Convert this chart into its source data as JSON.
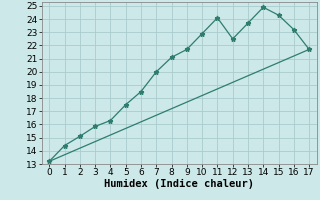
{
  "xlabel": "Humidex (Indice chaleur)",
  "line1_x": [
    0,
    1,
    2,
    3,
    4,
    5,
    6,
    7,
    8,
    9,
    10,
    11,
    12,
    13,
    14,
    15,
    16,
    17
  ],
  "line1_y": [
    13.2,
    14.4,
    15.1,
    15.85,
    16.3,
    17.5,
    18.5,
    20.0,
    21.1,
    21.7,
    22.9,
    24.1,
    22.5,
    23.7,
    24.9,
    24.3,
    23.2,
    21.7
  ],
  "line2_x": [
    0,
    17
  ],
  "line2_y": [
    13.2,
    21.7
  ],
  "line_color": "#2e7d6e",
  "marker": "*",
  "marker_size": 3.5,
  "xlim": [
    -0.5,
    17.5
  ],
  "ylim": [
    13,
    25.3
  ],
  "xticks": [
    0,
    1,
    2,
    3,
    4,
    5,
    6,
    7,
    8,
    9,
    10,
    11,
    12,
    13,
    14,
    15,
    16,
    17
  ],
  "yticks": [
    13,
    14,
    15,
    16,
    17,
    18,
    19,
    20,
    21,
    22,
    23,
    24,
    25
  ],
  "bg_color": "#cce8e8",
  "grid_color": "#aacccc",
  "font_size": 6.5,
  "xlabel_fontsize": 7.5
}
